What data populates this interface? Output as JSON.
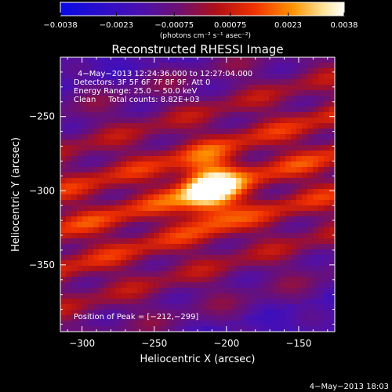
{
  "chart_data": {
    "type": "heatmap",
    "title": "Reconstructed RHESSI Image",
    "xlabel": "Heliocentric X (arcsec)",
    "ylabel": "Heliocentric Y (arcsec)",
    "xlim": [
      -315,
      -125
    ],
    "ylim": [
      -395,
      -210
    ],
    "x_ticks": [
      -300,
      -250,
      -200,
      -150
    ],
    "y_ticks": [
      -250,
      -300,
      -350
    ],
    "x_tick_labels": [
      "−300",
      "−250",
      "−200",
      "−150"
    ],
    "y_tick_labels": [
      "−250",
      "−300",
      "−350"
    ],
    "colorbar": {
      "range": [
        -0.0038,
        0.0038
      ],
      "ticks": [
        -0.0038,
        -0.0023,
        -0.00075,
        0.00075,
        0.0023,
        0.0038
      ],
      "tick_labels": [
        "−0.0038",
        "−0.0023",
        "−0.00075",
        "0.00075",
        "0.0023",
        "0.0038"
      ],
      "label": "(photons cm⁻² s⁻¹ asec⁻²)",
      "colormap": [
        "#1010f0",
        "#5a10c0",
        "#7a1080",
        "#b01020",
        "#f04000",
        "#ff9000",
        "#fff0c0",
        "#ffffff"
      ]
    },
    "annotations": [
      "4−May−2013 12:24:36.000 to 12:27:04.000",
      "Detectors: 3F 5F 6F 7F 8F 9F, Att 0",
      "Energy Range: 25.0 − 50.0 keV",
      "Clean     Total counts: 8.82E+03"
    ],
    "peak": {
      "x": -212,
      "y": -299,
      "label": "Position of Peak = [−212,−299]"
    },
    "features": {
      "source_sigma_arcsec": 14,
      "stripe_angle_deg": 15
    }
  },
  "footer": {
    "timestamp": "4−May−2013 18:03"
  }
}
